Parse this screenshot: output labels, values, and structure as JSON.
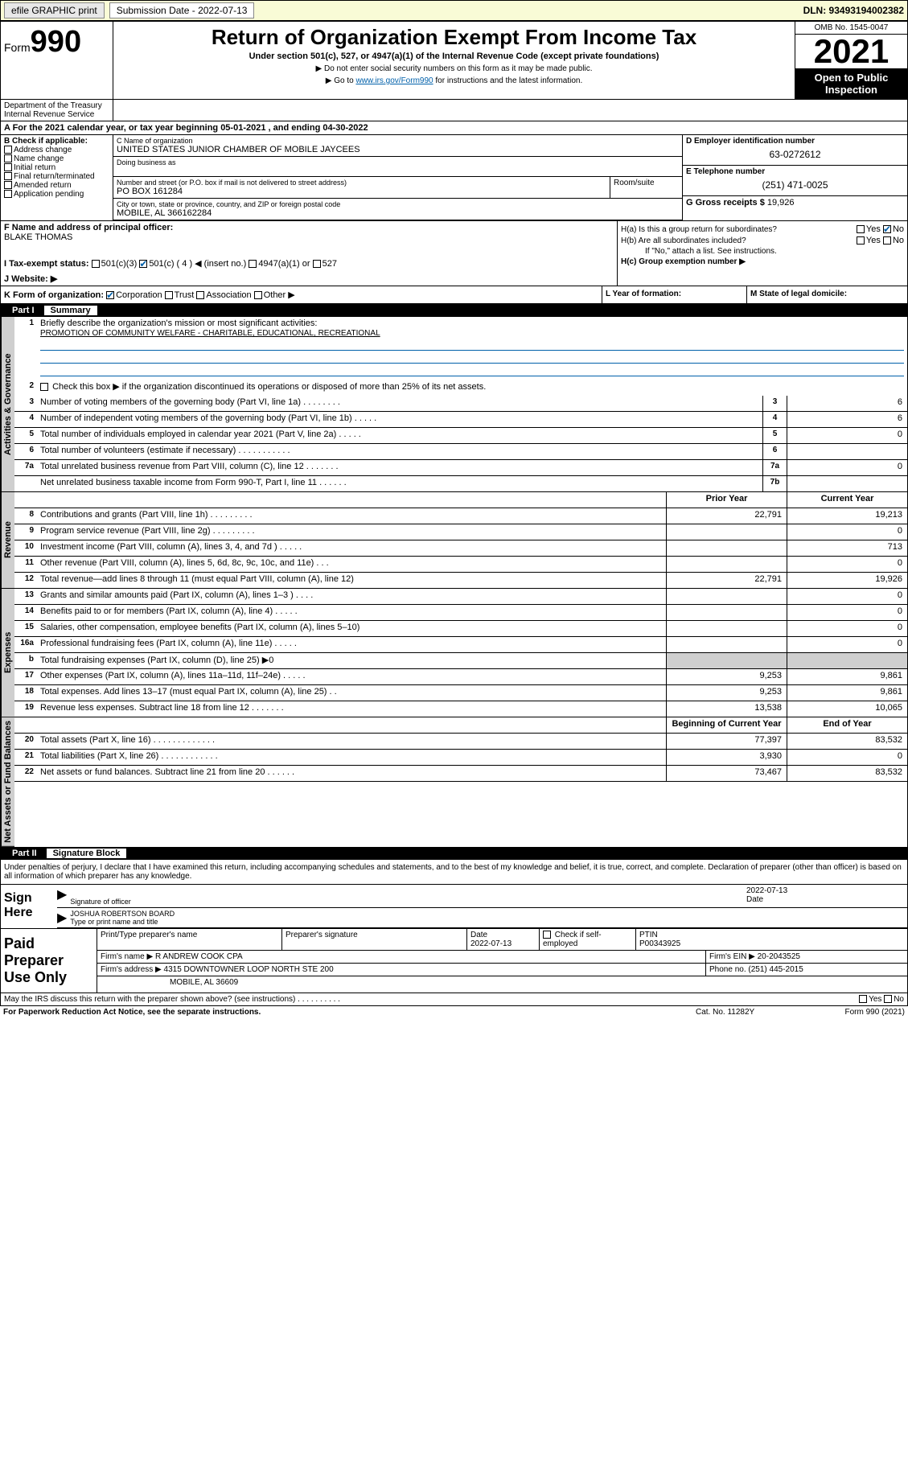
{
  "topbar": {
    "efile": "efile GRAPHIC print",
    "submission_label": "Submission Date - 2022-07-13",
    "dln": "DLN: 93493194002382"
  },
  "header": {
    "form_prefix": "Form",
    "form_number": "990",
    "title": "Return of Organization Exempt From Income Tax",
    "subtitle": "Under section 501(c), 527, or 4947(a)(1) of the Internal Revenue Code (except private foundations)",
    "note1": "▶ Do not enter social security numbers on this form as it may be made public.",
    "note2_pre": "▶ Go to ",
    "note2_link": "www.irs.gov/Form990",
    "note2_post": " for instructions and the latest information.",
    "omb": "OMB No. 1545-0047",
    "year": "2021",
    "open": "Open to Public Inspection",
    "dept": "Department of the Treasury Internal Revenue Service"
  },
  "a": {
    "text": "A For the 2021 calendar year, or tax year beginning 05-01-2021   , and ending 04-30-2022"
  },
  "b": {
    "label": "B Check if applicable:",
    "items": [
      "Address change",
      "Name change",
      "Initial return",
      "Final return/terminated",
      "Amended return",
      "Application pending"
    ]
  },
  "c": {
    "name_label": "C Name of organization",
    "name": "UNITED STATES JUNIOR CHAMBER OF MOBILE JAYCEES",
    "dba_label": "Doing business as",
    "addr_label": "Number and street (or P.O. box if mail is not delivered to street address)",
    "addr": "PO BOX 161284",
    "room_label": "Room/suite",
    "city_label": "City or town, state or province, country, and ZIP or foreign postal code",
    "city": "MOBILE, AL  366162284"
  },
  "d": {
    "label": "D Employer identification number",
    "val": "63-0272612"
  },
  "e": {
    "label": "E Telephone number",
    "val": "(251) 471-0025"
  },
  "g": {
    "label": "G Gross receipts $",
    "val": "19,926"
  },
  "f": {
    "label": "F Name and address of principal officer:",
    "val": "BLAKE THOMAS"
  },
  "h": {
    "a": "H(a)  Is this a group return for subordinates?",
    "b": "H(b)  Are all subordinates included?",
    "b_note": "If \"No,\" attach a list. See instructions.",
    "c": "H(c)  Group exemption number ▶",
    "yes": "Yes",
    "no": "No"
  },
  "i": {
    "label": "I   Tax-exempt status:",
    "opts": [
      "501(c)(3)",
      "501(c) ( 4 ) ◀ (insert no.)",
      "4947(a)(1) or",
      "527"
    ]
  },
  "j": {
    "label": "J   Website: ▶"
  },
  "k": {
    "label": "K Form of organization:",
    "opts": [
      "Corporation",
      "Trust",
      "Association",
      "Other ▶"
    ],
    "l": "L Year of formation:",
    "m": "M State of legal domicile:"
  },
  "part1": {
    "num": "Part I",
    "title": "Summary"
  },
  "summary": {
    "q1": "Briefly describe the organization's mission or most significant activities:",
    "mission": "PROMOTION OF COMMUNITY WELFARE - CHARITABLE, EDUCATIONAL, RECREATIONAL",
    "q2": "Check this box ▶     if the organization discontinued its operations or disposed of more than 25% of its net assets.",
    "rows": [
      {
        "n": "3",
        "d": "Number of voting members of the governing body (Part VI, line 1a)   .   .   .   .   .   .   .   .",
        "box": "3",
        "cur": "6"
      },
      {
        "n": "4",
        "d": "Number of independent voting members of the governing body (Part VI, line 1b)   .   .   .   .   .",
        "box": "4",
        "cur": "6"
      },
      {
        "n": "5",
        "d": "Total number of individuals employed in calendar year 2021 (Part V, line 2a)   .   .   .   .   .",
        "box": "5",
        "cur": "0"
      },
      {
        "n": "6",
        "d": "Total number of volunteers (estimate if necessary)   .   .   .   .   .   .   .   .   .   .   .",
        "box": "6",
        "cur": ""
      },
      {
        "n": "7a",
        "d": "Total unrelated business revenue from Part VIII, column (C), line 12   .   .   .   .   .   .   .",
        "box": "7a",
        "cur": "0"
      },
      {
        "n": "",
        "d": "Net unrelated business taxable income from Form 990-T, Part I, line 11   .   .   .   .   .   .",
        "box": "7b",
        "cur": ""
      }
    ],
    "head_prior": "Prior Year",
    "head_cur": "Current Year",
    "rev": [
      {
        "n": "8",
        "d": "Contributions and grants (Part VIII, line 1h)   .   .   .   .   .   .   .   .   .",
        "p": "22,791",
        "c": "19,213"
      },
      {
        "n": "9",
        "d": "Program service revenue (Part VIII, line 2g)   .   .   .   .   .   .   .   .   .",
        "p": "",
        "c": "0"
      },
      {
        "n": "10",
        "d": "Investment income (Part VIII, column (A), lines 3, 4, and 7d )   .   .   .   .   .",
        "p": "",
        "c": "713"
      },
      {
        "n": "11",
        "d": "Other revenue (Part VIII, column (A), lines 5, 6d, 8c, 9c, 10c, and 11e)   .   .   .",
        "p": "",
        "c": "0"
      },
      {
        "n": "12",
        "d": "Total revenue—add lines 8 through 11 (must equal Part VIII, column (A), line 12)",
        "p": "22,791",
        "c": "19,926"
      }
    ],
    "exp": [
      {
        "n": "13",
        "d": "Grants and similar amounts paid (Part IX, column (A), lines 1–3 )   .   .   .   .",
        "p": "",
        "c": "0"
      },
      {
        "n": "14",
        "d": "Benefits paid to or for members (Part IX, column (A), line 4)   .   .   .   .   .",
        "p": "",
        "c": "0"
      },
      {
        "n": "15",
        "d": "Salaries, other compensation, employee benefits (Part IX, column (A), lines 5–10)",
        "p": "",
        "c": "0"
      },
      {
        "n": "16a",
        "d": "Professional fundraising fees (Part IX, column (A), line 11e)   .   .   .   .   .",
        "p": "",
        "c": "0"
      },
      {
        "n": "b",
        "d": "Total fundraising expenses (Part IX, column (D), line 25) ▶0",
        "p": "shade",
        "c": "shade"
      },
      {
        "n": "17",
        "d": "Other expenses (Part IX, column (A), lines 11a–11d, 11f–24e)   .   .   .   .   .",
        "p": "9,253",
        "c": "9,861"
      },
      {
        "n": "18",
        "d": "Total expenses. Add lines 13–17 (must equal Part IX, column (A), line 25)   .   .",
        "p": "9,253",
        "c": "9,861"
      },
      {
        "n": "19",
        "d": "Revenue less expenses. Subtract line 18 from line 12   .   .   .   .   .   .   .",
        "p": "13,538",
        "c": "10,065"
      }
    ],
    "head_beg": "Beginning of Current Year",
    "head_end": "End of Year",
    "net": [
      {
        "n": "20",
        "d": "Total assets (Part X, line 16)   .   .   .   .   .   .   .   .   .   .   .   .   .",
        "p": "77,397",
        "c": "83,532"
      },
      {
        "n": "21",
        "d": "Total liabilities (Part X, line 26)   .   .   .   .   .   .   .   .   .   .   .   .",
        "p": "3,930",
        "c": "0"
      },
      {
        "n": "22",
        "d": "Net assets or fund balances. Subtract line 21 from line 20   .   .   .   .   .   .",
        "p": "73,467",
        "c": "83,532"
      }
    ],
    "sides": {
      "gov": "Activities & Governance",
      "rev": "Revenue",
      "exp": "Expenses",
      "net": "Net Assets or Fund Balances"
    }
  },
  "part2": {
    "num": "Part II",
    "title": "Signature Block"
  },
  "sig": {
    "decl": "Under penalties of perjury, I declare that I have examined this return, including accompanying schedules and statements, and to the best of my knowledge and belief, it is true, correct, and complete. Declaration of preparer (other than officer) is based on all information of which preparer has any knowledge.",
    "sign_here": "Sign Here",
    "officer_sig": "Signature of officer",
    "date": "2022-07-13",
    "date_label": "Date",
    "officer_name": "JOSHUA ROBERTSON  BOARD",
    "officer_name_label": "Type or print name and title"
  },
  "paid": {
    "title": "Paid Preparer Use Only",
    "h1": "Print/Type preparer's name",
    "h2": "Preparer's signature",
    "h3": "Date",
    "h3v": "2022-07-13",
    "h4": "Check      if self-employed",
    "h5": "PTIN",
    "h5v": "P00343925",
    "firm_name_label": "Firm's name    ▶",
    "firm_name": "R ANDREW COOK CPA",
    "firm_ein_label": "Firm's EIN ▶",
    "firm_ein": "20-2043525",
    "firm_addr_label": "Firm's address ▶",
    "firm_addr1": "4315 DOWNTOWNER LOOP NORTH STE 200",
    "firm_addr2": "MOBILE, AL  36609",
    "phone_label": "Phone no.",
    "phone": "(251) 445-2015"
  },
  "footer": {
    "discuss": "May the IRS discuss this return with the preparer shown above? (see instructions)   .   .   .   .   .   .   .   .   .   .",
    "yes": "Yes",
    "no": "No",
    "pra": "For Paperwork Reduction Act Notice, see the separate instructions.",
    "cat": "Cat. No. 11282Y",
    "form": "Form 990 (2021)"
  }
}
